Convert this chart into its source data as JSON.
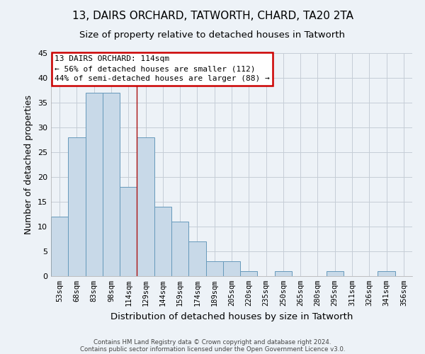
{
  "title": "13, DAIRS ORCHARD, TATWORTH, CHARD, TA20 2TA",
  "subtitle": "Size of property relative to detached houses in Tatworth",
  "xlabel": "Distribution of detached houses by size in Tatworth",
  "ylabel": "Number of detached properties",
  "categories": [
    "53sqm",
    "68sqm",
    "83sqm",
    "98sqm",
    "114sqm",
    "129sqm",
    "144sqm",
    "159sqm",
    "174sqm",
    "189sqm",
    "205sqm",
    "220sqm",
    "235sqm",
    "250sqm",
    "265sqm",
    "280sqm",
    "295sqm",
    "311sqm",
    "326sqm",
    "341sqm",
    "356sqm"
  ],
  "values": [
    12,
    28,
    37,
    37,
    18,
    28,
    14,
    11,
    7,
    3,
    3,
    1,
    0,
    1,
    0,
    0,
    1,
    0,
    0,
    1,
    0
  ],
  "highlight_index": 4,
  "bar_color": "#c8d9e8",
  "bar_edge_color": "#6699bb",
  "highlight_line_color": "#aa1111",
  "ylim": [
    0,
    45
  ],
  "yticks": [
    0,
    5,
    10,
    15,
    20,
    25,
    30,
    35,
    40,
    45
  ],
  "annotation_title": "13 DAIRS ORCHARD: 114sqm",
  "annotation_line1": "← 56% of detached houses are smaller (112)",
  "annotation_line2": "44% of semi-detached houses are larger (88) →",
  "annotation_box_color": "#ffffff",
  "annotation_box_edge_color": "#cc0000",
  "footer_line1": "Contains HM Land Registry data © Crown copyright and database right 2024.",
  "footer_line2": "Contains public sector information licensed under the Open Government Licence v3.0.",
  "background_color": "#edf2f7",
  "grid_color": "#c5cdd6",
  "title_fontsize": 11,
  "subtitle_fontsize": 9.5
}
